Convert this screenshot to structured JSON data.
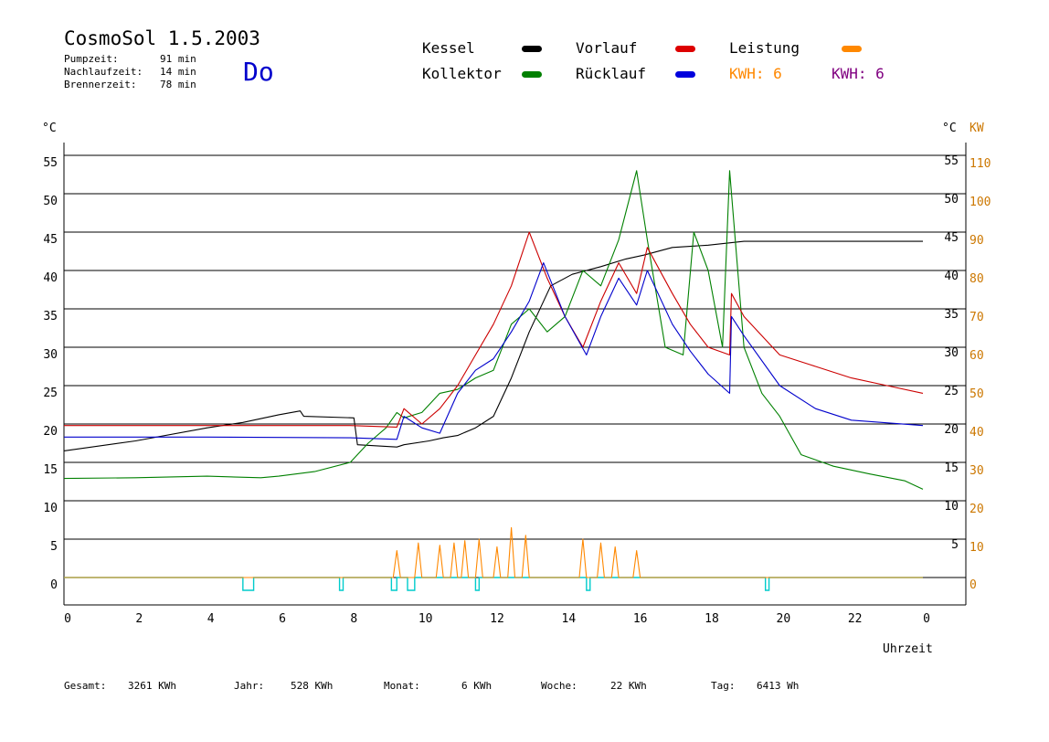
{
  "header": {
    "title": "CosmoSol 1.5.2003",
    "pump_label": "Pumpzeit:",
    "pump_value": "91 min",
    "nachlauf_label": "Nachlaufzeit:",
    "nachlauf_value": "14 min",
    "brenner_label": "Brennerzeit:",
    "brenner_value": "78 min",
    "day": "Do"
  },
  "legend": {
    "kessel": "Kessel",
    "kollektor": "Kollektor",
    "vorlauf": "Vorlauf",
    "ruecklauf": "Rücklauf",
    "leistung": "Leistung",
    "kwh1": "KWH: 6",
    "kwh2": "KWH: 6"
  },
  "colors": {
    "kessel": "#000000",
    "kollektor": "#008000",
    "vorlauf": "#cc0000",
    "ruecklauf": "#0000cc",
    "leistung": "#ff8800",
    "purple": "#800080",
    "pump": "#00cccc",
    "kw_axis": "#cc7700"
  },
  "axes": {
    "left_unit": "°C",
    "right_unit_c": "°C",
    "right_unit_kw": "KW",
    "x_title": "Uhrzeit",
    "left_ticks": [
      "0",
      "5",
      "10",
      "15",
      "20",
      "25",
      "30",
      "35",
      "40",
      "45",
      "50",
      "55"
    ],
    "right_ticks_c": [
      "5",
      "10",
      "15",
      "20",
      "25",
      "30",
      "35",
      "40",
      "45",
      "50",
      "55"
    ],
    "right_ticks_kw": [
      "0",
      "10",
      "20",
      "30",
      "40",
      "50",
      "60",
      "70",
      "80",
      "90",
      "100",
      "110"
    ],
    "x_ticks": [
      "0",
      "2",
      "4",
      "6",
      "8",
      "10",
      "12",
      "14",
      "16",
      "18",
      "20",
      "22",
      "0"
    ]
  },
  "footer": {
    "gesamt_label": "Gesamt:",
    "gesamt_value": "3261 KWh",
    "jahr_label": "Jahr:",
    "jahr_value": "528 KWh",
    "monat_label": "Monat:",
    "monat_value": "6 KWh",
    "woche_label": "Woche:",
    "woche_value": "22 KWh",
    "tag_label": "Tag:",
    "tag_value": "6413 Wh"
  },
  "chart_data": {
    "type": "line",
    "xlabel": "Uhrzeit",
    "ylabel_left": "°C",
    "ylabel_right": "KW",
    "xlim": [
      0,
      24
    ],
    "ylim": [
      0,
      55
    ],
    "grid": true,
    "series": [
      {
        "name": "Kessel",
        "color": "#000000",
        "points": [
          [
            0,
            16.5
          ],
          [
            2,
            17.8
          ],
          [
            4,
            19.5
          ],
          [
            5,
            20.2
          ],
          [
            6,
            21.2
          ],
          [
            6.6,
            21.7
          ],
          [
            6.7,
            21
          ],
          [
            8.1,
            20.8
          ],
          [
            8.2,
            17.3
          ],
          [
            9.3,
            17.0
          ],
          [
            9.5,
            17.3
          ],
          [
            10.2,
            17.8
          ],
          [
            10.6,
            18.2
          ],
          [
            11,
            18.5
          ],
          [
            11.5,
            19.5
          ],
          [
            12,
            21
          ],
          [
            12.5,
            26
          ],
          [
            13,
            32
          ],
          [
            13.6,
            38
          ],
          [
            14.2,
            39.5
          ],
          [
            15,
            40.5
          ],
          [
            15.7,
            41.5
          ],
          [
            16.2,
            42
          ],
          [
            17,
            43
          ],
          [
            18,
            43.3
          ],
          [
            19,
            43.8
          ],
          [
            24,
            43.8
          ]
        ]
      },
      {
        "name": "Kollektor",
        "color": "#008000",
        "points": [
          [
            0,
            12.9
          ],
          [
            2,
            13
          ],
          [
            4,
            13.2
          ],
          [
            5.5,
            13
          ],
          [
            6,
            13.2
          ],
          [
            7,
            13.8
          ],
          [
            8,
            15
          ],
          [
            8.5,
            17.5
          ],
          [
            9,
            19.5
          ],
          [
            9.3,
            21.5
          ],
          [
            9.5,
            20.8
          ],
          [
            10,
            21.5
          ],
          [
            10.5,
            24
          ],
          [
            11,
            24.5
          ],
          [
            11.5,
            26
          ],
          [
            12,
            27
          ],
          [
            12.5,
            33
          ],
          [
            13,
            35
          ],
          [
            13.5,
            32
          ],
          [
            14,
            34
          ],
          [
            14.5,
            40
          ],
          [
            15,
            38
          ],
          [
            15.5,
            44
          ],
          [
            16,
            53
          ],
          [
            16.3,
            44
          ],
          [
            16.8,
            30
          ],
          [
            17.3,
            29
          ],
          [
            17.6,
            45
          ],
          [
            18,
            40
          ],
          [
            18.4,
            30
          ],
          [
            18.6,
            53
          ],
          [
            19,
            30
          ],
          [
            19.5,
            24
          ],
          [
            20,
            21
          ],
          [
            20.6,
            16
          ],
          [
            21.5,
            14.5
          ],
          [
            22.5,
            13.5
          ],
          [
            23.5,
            12.6
          ],
          [
            24,
            11.5
          ]
        ]
      },
      {
        "name": "Vorlauf",
        "color": "#cc0000",
        "points": [
          [
            0,
            19.8
          ],
          [
            4,
            19.8
          ],
          [
            8,
            19.8
          ],
          [
            9.3,
            19.6
          ],
          [
            9.5,
            22
          ],
          [
            10,
            20
          ],
          [
            10.5,
            22
          ],
          [
            11,
            25
          ],
          [
            11.5,
            29
          ],
          [
            12,
            33
          ],
          [
            12.5,
            38
          ],
          [
            13,
            45
          ],
          [
            13.5,
            39
          ],
          [
            14,
            34
          ],
          [
            14.5,
            30
          ],
          [
            15,
            36
          ],
          [
            15.5,
            41
          ],
          [
            16,
            37
          ],
          [
            16.3,
            43
          ],
          [
            17,
            37
          ],
          [
            17.5,
            33
          ],
          [
            18,
            30
          ],
          [
            18.6,
            29
          ],
          [
            18.65,
            37
          ],
          [
            19,
            34
          ],
          [
            20,
            29
          ],
          [
            21,
            27.5
          ],
          [
            22,
            26
          ],
          [
            23,
            25
          ],
          [
            24,
            24
          ]
        ]
      },
      {
        "name": "Rücklauf",
        "color": "#0000cc",
        "points": [
          [
            0,
            18.3
          ],
          [
            4,
            18.3
          ],
          [
            8,
            18.2
          ],
          [
            9.3,
            18
          ],
          [
            9.5,
            21
          ],
          [
            10,
            19.5
          ],
          [
            10.5,
            18.8
          ],
          [
            11,
            24
          ],
          [
            11.5,
            27
          ],
          [
            12,
            28.5
          ],
          [
            12.5,
            32
          ],
          [
            13,
            36
          ],
          [
            13.4,
            41
          ],
          [
            14,
            34
          ],
          [
            14.6,
            29
          ],
          [
            15,
            34
          ],
          [
            15.5,
            39
          ],
          [
            16,
            35.5
          ],
          [
            16.3,
            40
          ],
          [
            17,
            33
          ],
          [
            17.5,
            29.5
          ],
          [
            18,
            26.5
          ],
          [
            18.6,
            24
          ],
          [
            18.65,
            34
          ],
          [
            19,
            31.5
          ],
          [
            20,
            25
          ],
          [
            21,
            22
          ],
          [
            22,
            20.5
          ],
          [
            24,
            19.8
          ]
        ]
      },
      {
        "name": "Leistung",
        "color": "#ff8800",
        "points": [
          [
            0,
            0
          ],
          [
            9.2,
            0
          ],
          [
            9.3,
            3.5
          ],
          [
            9.4,
            0
          ],
          [
            9.8,
            0
          ],
          [
            9.9,
            4.5
          ],
          [
            10,
            0
          ],
          [
            10.4,
            0
          ],
          [
            10.5,
            4.2
          ],
          [
            10.6,
            0
          ],
          [
            10.8,
            0
          ],
          [
            10.9,
            4.5
          ],
          [
            11,
            0
          ],
          [
            11.1,
            0
          ],
          [
            11.2,
            4.8
          ],
          [
            11.3,
            0
          ],
          [
            11.5,
            0
          ],
          [
            11.6,
            5
          ],
          [
            11.7,
            0
          ],
          [
            12,
            0
          ],
          [
            12.1,
            4
          ],
          [
            12.2,
            0
          ],
          [
            12.4,
            0
          ],
          [
            12.5,
            6.5
          ],
          [
            12.6,
            0
          ],
          [
            12.8,
            0
          ],
          [
            12.9,
            5.5
          ],
          [
            13,
            0
          ],
          [
            14.4,
            0
          ],
          [
            14.5,
            5
          ],
          [
            14.6,
            0
          ],
          [
            14.9,
            0
          ],
          [
            15,
            4.5
          ],
          [
            15.1,
            0
          ],
          [
            15.3,
            0
          ],
          [
            15.4,
            4
          ],
          [
            15.5,
            0
          ],
          [
            15.9,
            0
          ],
          [
            16,
            3.5
          ],
          [
            16.1,
            0
          ],
          [
            24,
            0
          ]
        ]
      }
    ]
  }
}
